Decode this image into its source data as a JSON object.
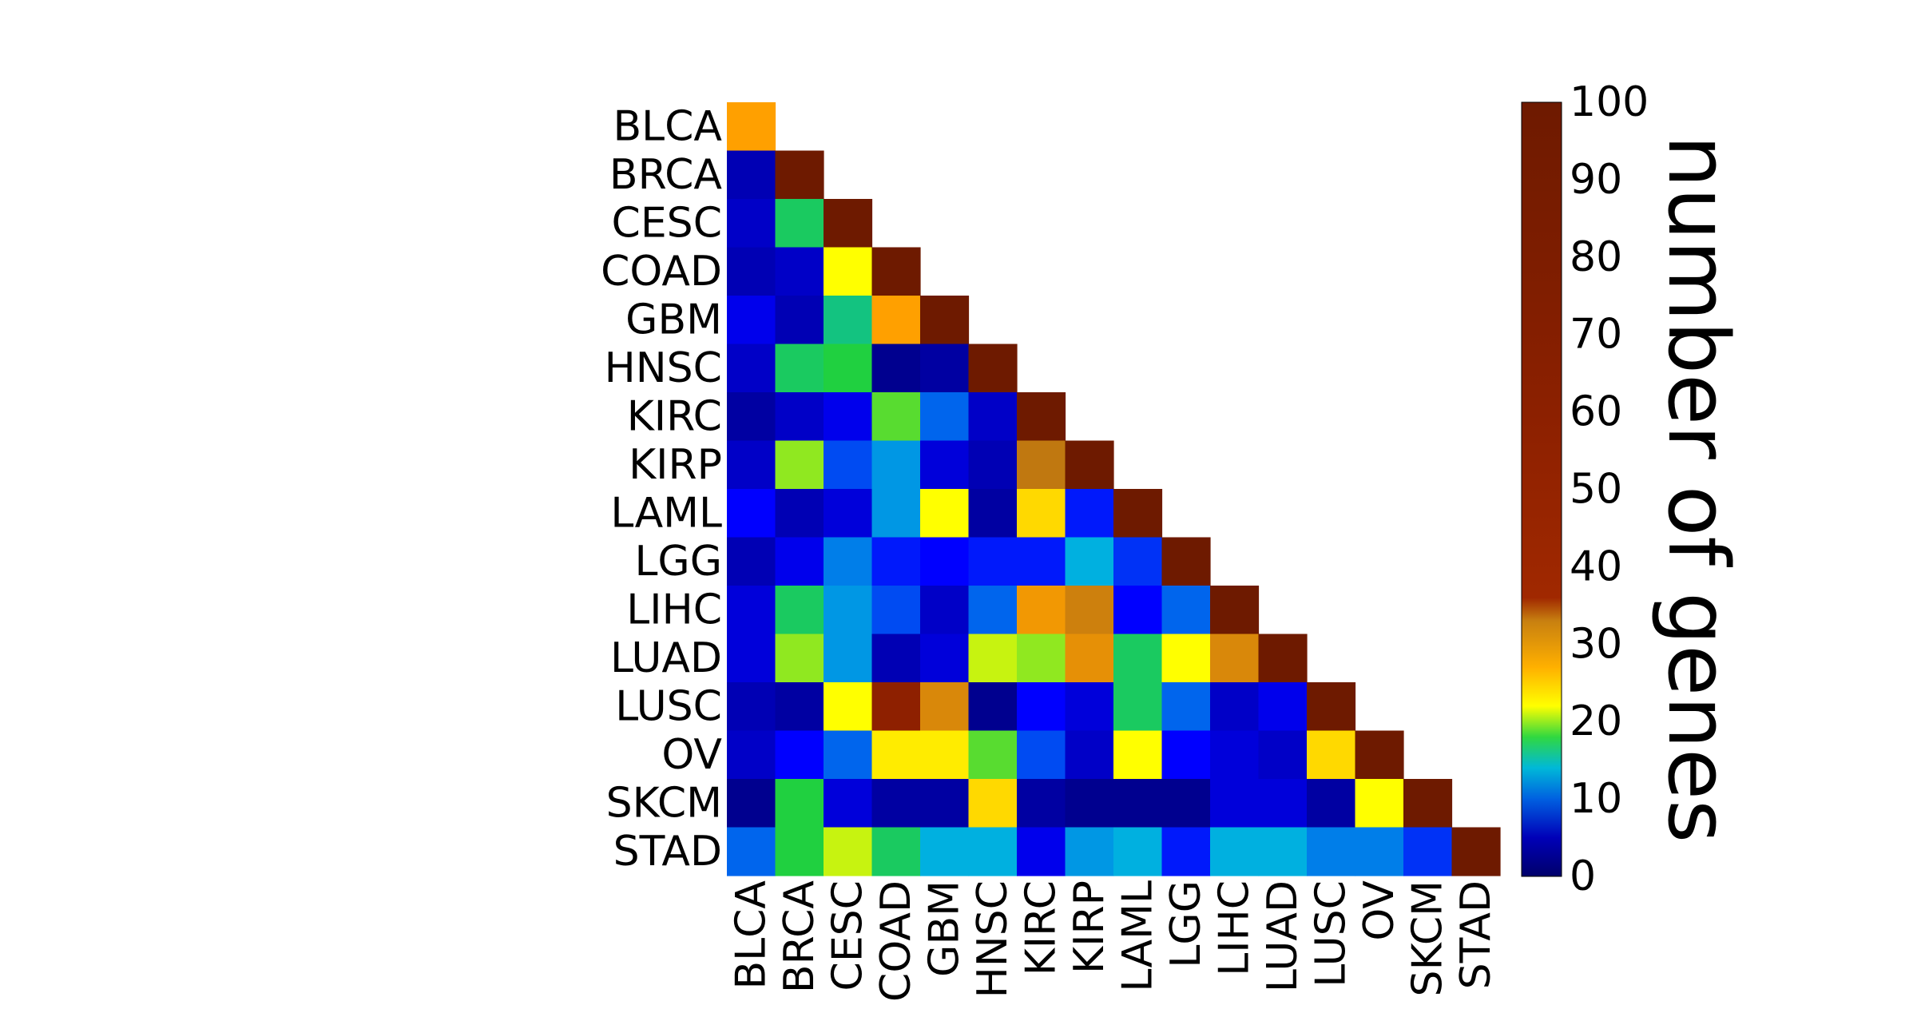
{
  "chart_data": {
    "type": "heatmap",
    "rows": [
      "BLCA",
      "BRCA",
      "CESC",
      "COAD",
      "GBM",
      "HNSC",
      "KIRC",
      "KIRP",
      "LAML",
      "LGG",
      "LIHC",
      "LUAD",
      "LUSC",
      "OV",
      "SKCM",
      "STAD"
    ],
    "columns": [
      "BLCA",
      "BRCA",
      "CESC",
      "COAD",
      "GBM",
      "HNSC",
      "KIRC",
      "KIRP",
      "LAML",
      "LGG",
      "LIHC",
      "LUAD",
      "LUSC",
      "OV",
      "SKCM",
      "STAD"
    ],
    "values": [
      [
        27
      ],
      [
        2,
        100
      ],
      [
        3,
        17,
        100
      ],
      [
        2,
        3,
        22,
        100
      ],
      [
        5,
        2,
        16,
        27,
        100
      ],
      [
        3,
        17,
        18,
        0,
        1,
        100
      ],
      [
        1,
        3,
        5,
        19,
        10,
        3,
        100
      ],
      [
        3,
        20,
        9,
        12,
        4,
        2,
        32,
        100
      ],
      [
        6,
        2,
        4,
        12,
        22,
        1,
        24,
        7,
        100
      ],
      [
        2,
        5,
        11,
        7,
        6,
        7,
        7,
        13,
        8,
        100
      ],
      [
        4,
        17,
        12,
        9,
        3,
        10,
        28,
        31,
        6,
        10,
        100
      ],
      [
        4,
        20,
        12,
        2,
        4,
        21,
        20,
        29,
        17,
        22,
        30,
        100
      ],
      [
        2,
        1,
        22,
        43,
        30,
        0,
        6,
        4,
        17,
        10,
        3,
        5,
        100
      ],
      [
        3,
        6,
        10,
        23,
        23,
        19,
        9,
        3,
        22,
        6,
        4,
        3,
        24,
        100
      ],
      [
        0,
        18,
        4,
        1,
        1,
        24,
        1,
        0,
        0,
        0,
        4,
        4,
        1,
        22,
        100
      ],
      [
        10,
        18,
        21,
        17,
        13,
        13,
        5,
        12,
        13,
        7,
        13,
        13,
        11,
        11,
        8,
        100
      ]
    ],
    "colorbar": {
      "label": "number of genes",
      "min": 0,
      "max": 100,
      "ticks": [
        "0",
        "10",
        "20",
        "30",
        "40",
        "50",
        "60",
        "70",
        "80",
        "90",
        "100"
      ]
    },
    "colormap": [
      "#00008f",
      "#0000ff",
      "#00b0e0",
      "#20d040",
      "#ffff00",
      "#ffa000",
      "#c07810",
      "#902000",
      "#6e1a00"
    ]
  }
}
